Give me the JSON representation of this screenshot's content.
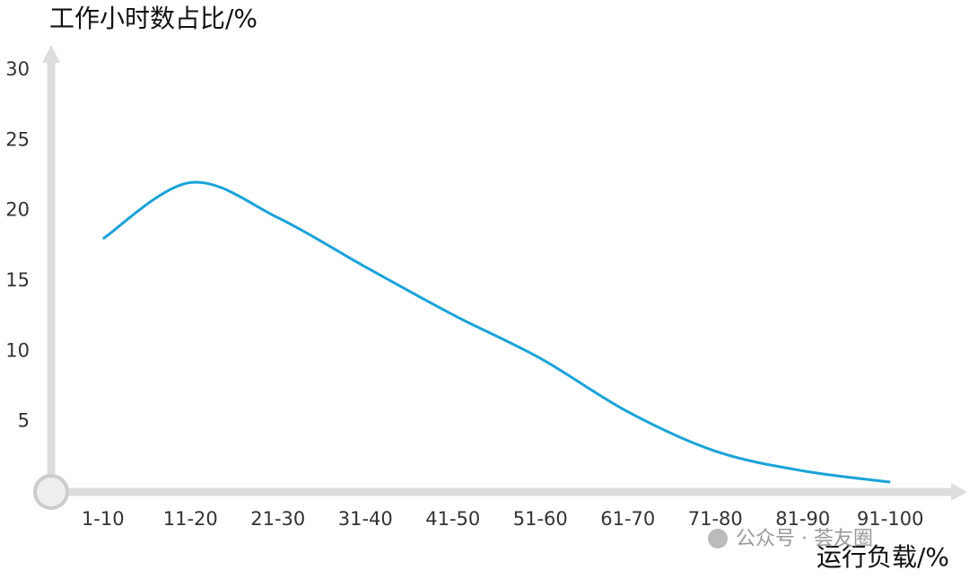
{
  "chart_data": {
    "type": "line",
    "y_axis_title": "工作小时数占比/%",
    "x_axis_title": "运行负载/%",
    "watermark": "公众号 · 荟友圈",
    "categories": [
      "1-10",
      "11-20",
      "21-30",
      "31-40",
      "41-50",
      "51-60",
      "61-70",
      "71-80",
      "81-90",
      "91-100"
    ],
    "values": [
      18,
      22,
      19.5,
      16,
      12.6,
      9.5,
      5.7,
      2.9,
      1.5,
      0.7
    ],
    "color": "#1aa3d9",
    "ylim": [
      0,
      30
    ],
    "yticks": [
      5,
      10,
      15,
      20,
      25,
      30
    ]
  }
}
